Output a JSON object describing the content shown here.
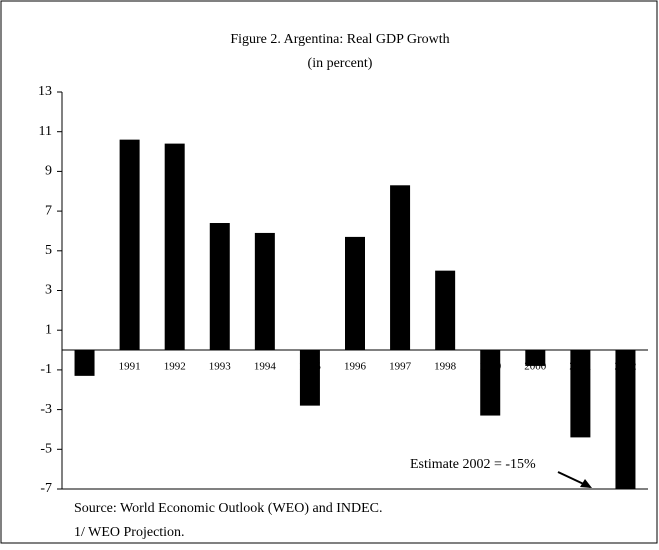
{
  "chart_data": {
    "type": "bar",
    "title": "Figure 2. Argentina: Real GDP Growth",
    "subtitle": "(in percent)",
    "categories": [
      null,
      "1991",
      "1992",
      "1993",
      "1994",
      "1995",
      "1996",
      "1997",
      "1998",
      "1999",
      "2000",
      "2001",
      "2002"
    ],
    "values": [
      -1.3,
      10.6,
      10.4,
      6.4,
      5.9,
      -2.8,
      5.7,
      8.3,
      4.0,
      -3.3,
      -0.8,
      -4.4,
      -7
    ],
    "color": "#000000",
    "ylim": [
      -7,
      13
    ],
    "yticks": [
      13,
      11,
      9,
      7,
      5,
      3,
      1,
      -1,
      -3,
      -5,
      -7
    ],
    "annotation": "Estimate 2002 = -15%",
    "source": "Source: World Economic Outlook (WEO) and INDEC.",
    "note": "1/ WEO Projection."
  }
}
